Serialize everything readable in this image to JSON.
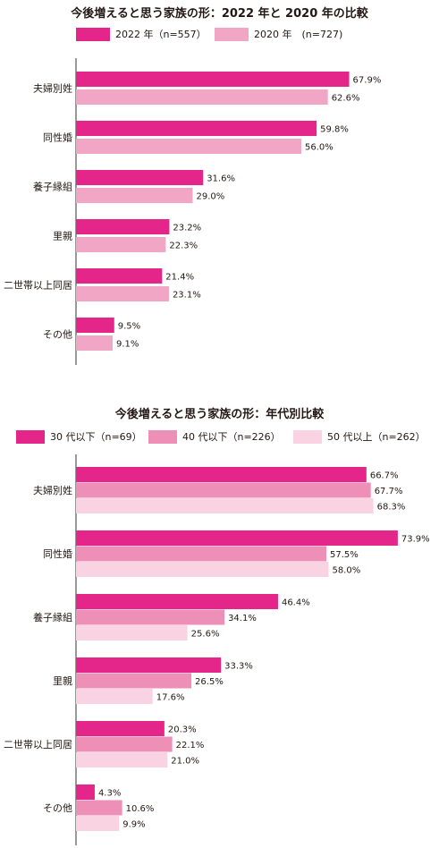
{
  "chart_data": [
    {
      "type": "bar",
      "title": "今後増えると思う家族の形：2022 年と 2020 年の比較",
      "categories": [
        "夫婦別姓",
        "同性婚",
        "養子縁組",
        "里親",
        "二世帯以上同居",
        "その他"
      ],
      "series": [
        {
          "name": "2022 年（n=557）",
          "color": "#e4268a",
          "values": [
            67.9,
            59.8,
            31.6,
            23.2,
            21.4,
            9.5
          ],
          "labels": [
            "67.9%",
            "59.8%",
            "31.6%",
            "23.2%",
            "21.4%",
            "9.5%"
          ]
        },
        {
          "name": "2020 年　(n=727)",
          "color": "#f2a6c5",
          "values": [
            62.6,
            56.0,
            29.0,
            22.3,
            23.1,
            9.1
          ],
          "labels": [
            "62.6%",
            "56.0%",
            "29.0%",
            "22.3%",
            "23.1%",
            "9.1%"
          ]
        }
      ],
      "xlim": [
        0,
        80
      ],
      "orientation": "horizontal"
    },
    {
      "type": "bar",
      "title": "今後増えると思う家族の形：年代別比較",
      "categories": [
        "夫婦別姓",
        "同性婚",
        "養子縁組",
        "里親",
        "二世帯以上同居",
        "その他"
      ],
      "series": [
        {
          "name": "30 代以下（n=69）",
          "color": "#e4268a",
          "values": [
            66.7,
            73.9,
            46.4,
            33.3,
            20.3,
            4.3
          ],
          "labels": [
            "66.7%",
            "73.9%",
            "46.4%",
            "33.3%",
            "20.3%",
            "4.3%"
          ]
        },
        {
          "name": "40 代以下（n=226）",
          "color": "#ee8fb7",
          "values": [
            67.7,
            57.5,
            34.1,
            26.5,
            22.1,
            10.6
          ],
          "labels": [
            "67.7%",
            "57.5%",
            "34.1%",
            "26.5%",
            "22.1%",
            "10.6%"
          ]
        },
        {
          "name": "50 代以上（n=262）",
          "color": "#f9d3e2",
          "values": [
            68.3,
            58.0,
            25.6,
            17.6,
            21.0,
            9.9
          ],
          "labels": [
            "68.3%",
            "58.0%",
            "25.6%",
            "17.6%",
            "21.0%",
            "9.9%"
          ]
        }
      ],
      "xlim": [
        0,
        80
      ],
      "orientation": "horizontal"
    }
  ]
}
